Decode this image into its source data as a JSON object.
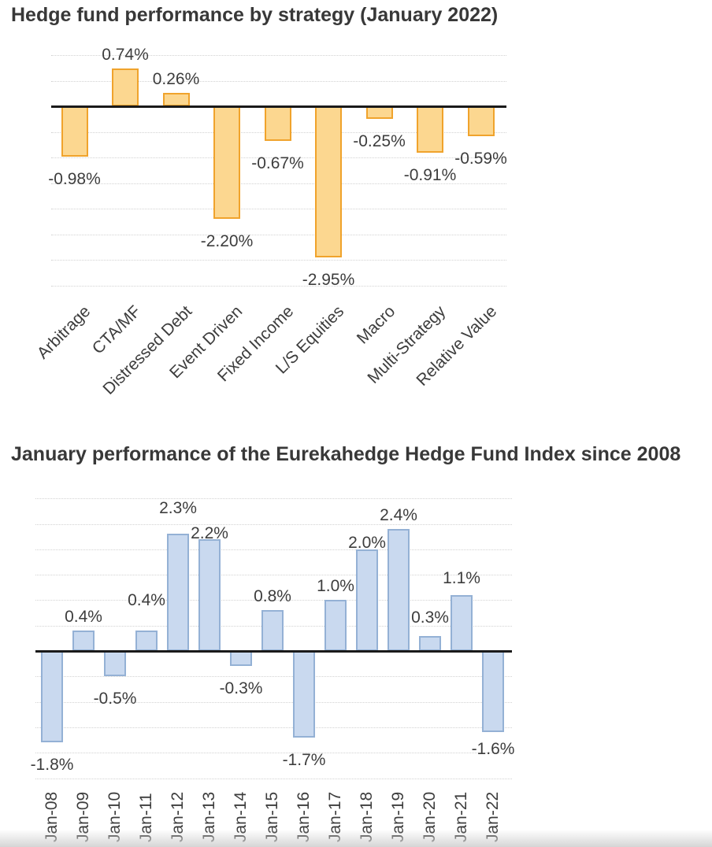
{
  "page": {
    "background": "#ffffff",
    "text_color": "#3d3d3d",
    "title_color": "#383838",
    "gridline_color": "#d2d2d2",
    "axis_color": "#1a1a1a"
  },
  "chart_data": [
    {
      "type": "bar",
      "title": "Hedge fund performance by strategy (January 2022)",
      "categories": [
        "Arbitrage",
        "CTA/MF",
        "Distressed Debt",
        "Event Driven",
        "Fixed Income",
        "L/S Equities",
        "Macro",
        "Multi-Strategy",
        "Relative Value"
      ],
      "values": [
        -0.98,
        0.74,
        0.26,
        -2.2,
        -0.67,
        -2.95,
        -0.25,
        -0.91,
        -0.59
      ],
      "labels": [
        "-0.98%",
        "0.74%",
        "0.26%",
        "-2.20%",
        "-0.67%",
        "-2.95%",
        "-0.25%",
        "-0.91%",
        "-0.59%"
      ],
      "unit": "percent",
      "xlabel": "",
      "ylabel": "",
      "ylim": [
        -3.5,
        1.0
      ],
      "gridline_step": 0.5,
      "grid": true,
      "legend": "none",
      "bar_fill": "#FCD790",
      "bar_border": "#F0A32C",
      "category_rotation": -45,
      "label_dy": [
        0,
        0,
        0,
        0,
        0,
        0,
        0,
        0,
        0
      ]
    },
    {
      "type": "bar",
      "title": "January performance of the Eurekahedge Hedge Fund Index since 2008",
      "categories": [
        "Jan-08",
        "Jan-09",
        "Jan-10",
        "Jan-11",
        "Jan-12",
        "Jan-13",
        "Jan-14",
        "Jan-15",
        "Jan-16",
        "Jan-17",
        "Jan-18",
        "Jan-19",
        "Jan-20",
        "Jan-21",
        "Jan-22"
      ],
      "values": [
        -1.8,
        0.4,
        -0.5,
        0.4,
        2.3,
        2.2,
        -0.3,
        0.8,
        -1.7,
        1.0,
        2.0,
        2.4,
        0.3,
        1.1,
        -1.6
      ],
      "labels": [
        "-1.8%",
        "0.4%",
        "-0.5%",
        "0.4%",
        "2.3%",
        "2.2%",
        "-0.3%",
        "0.8%",
        "-1.7%",
        "1.0%",
        "2.0%",
        "2.4%",
        "0.3%",
        "1.1%",
        "-1.6%"
      ],
      "unit": "percent",
      "xlabel": "",
      "ylabel": "",
      "ylim": [
        -2.5,
        3.0
      ],
      "gridline_step": 0.5,
      "grid": true,
      "legend": "none",
      "bar_fill": "#C9D9EF",
      "bar_border": "#94B1D5",
      "category_rotation": -90,
      "label_dy": [
        0,
        0,
        0,
        -21,
        -15,
        10,
        0,
        0,
        0,
        0,
        9,
        0,
        -6,
        -4,
        -7
      ]
    }
  ]
}
